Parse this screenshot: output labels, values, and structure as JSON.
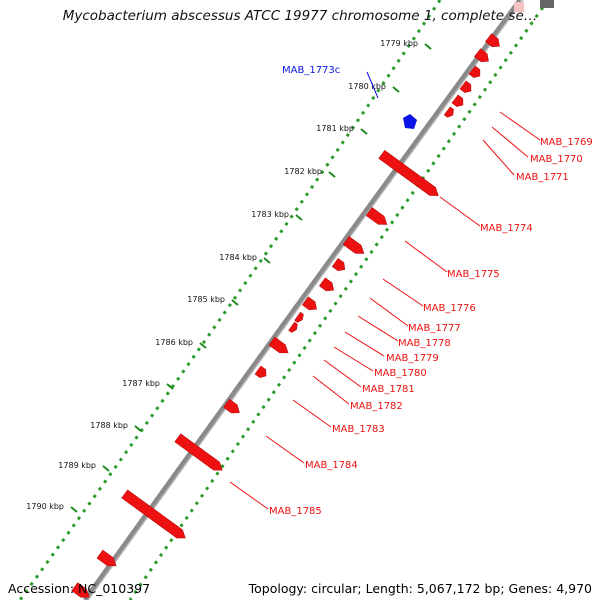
{
  "title": "Mycobacterium abscessus ATCC 19977 chromosome 1, complete se…",
  "footer": {
    "accession": "Accession: NC_010397",
    "topology": "Topology: circular; Length: 5,067,172 bp; Genes: 4,970"
  },
  "colors": {
    "forward_gene": "#ee1111",
    "reverse_gene": "#0a14e6",
    "backbone": "#888888",
    "outer_ticks": "#2a9a2a",
    "inner_ticks": "#1e8c1e"
  },
  "ruler_ticks": [
    "1779 kbp",
    "1780 kbp",
    "1781 kbp",
    "1782 kbp",
    "1783 kbp",
    "1784 kbp",
    "1785 kbp",
    "1786 kbp",
    "1787 kbp",
    "1788 kbp",
    "1789 kbp",
    "1790 kbp"
  ],
  "genes": [
    {
      "label": "MAB_1773c",
      "strand": "reverse"
    },
    {
      "label": "MAB_1769",
      "strand": "forward"
    },
    {
      "label": "MAB_1770",
      "strand": "forward"
    },
    {
      "label": "MAB_1771",
      "strand": "forward"
    },
    {
      "label": "MAB_1774",
      "strand": "forward"
    },
    {
      "label": "MAB_1775",
      "strand": "forward"
    },
    {
      "label": "MAB_1776",
      "strand": "forward"
    },
    {
      "label": "MAB_1777",
      "strand": "forward"
    },
    {
      "label": "MAB_1778",
      "strand": "forward"
    },
    {
      "label": "MAB_1779",
      "strand": "forward"
    },
    {
      "label": "MAB_1780",
      "strand": "forward"
    },
    {
      "label": "MAB_1781",
      "strand": "forward"
    },
    {
      "label": "MAB_1782",
      "strand": "forward"
    },
    {
      "label": "MAB_1783",
      "strand": "forward"
    },
    {
      "label": "MAB_1784",
      "strand": "forward"
    },
    {
      "label": "MAB_1785",
      "strand": "forward"
    }
  ]
}
